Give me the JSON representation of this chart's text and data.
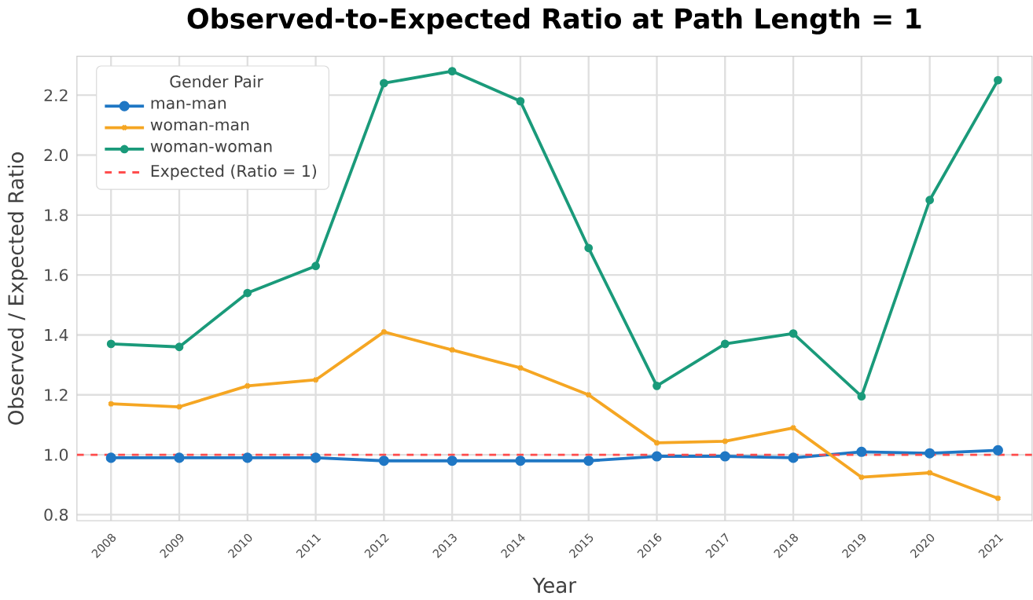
{
  "chart_data": {
    "type": "line",
    "title": "Observed-to-Expected Ratio at Path Length = 1",
    "xlabel": "Year",
    "ylabel": "Observed / Expected Ratio",
    "legend_title": "Gender Pair",
    "categories": [
      "2008",
      "2009",
      "2010",
      "2011",
      "2012",
      "2013",
      "2014",
      "2015",
      "2016",
      "2017",
      "2018",
      "2019",
      "2020",
      "2021"
    ],
    "series": [
      {
        "name": "man-man",
        "color": "#1f77c4",
        "marker": "circle",
        "values": [
          0.99,
          0.99,
          0.99,
          0.99,
          0.98,
          0.98,
          0.98,
          0.98,
          0.995,
          0.995,
          0.99,
          1.01,
          1.005,
          1.015
        ]
      },
      {
        "name": "woman-man",
        "color": "#f5a623",
        "marker": "cross",
        "values": [
          1.17,
          1.16,
          1.23,
          1.25,
          1.41,
          1.35,
          1.29,
          1.2,
          1.04,
          1.045,
          1.09,
          0.925,
          0.94,
          0.855
        ]
      },
      {
        "name": "woman-woman",
        "color": "#1a9a7a",
        "marker": "circle",
        "values": [
          1.37,
          1.36,
          1.54,
          1.63,
          2.24,
          2.28,
          2.18,
          1.69,
          1.23,
          1.37,
          1.405,
          1.195,
          1.85,
          2.25
        ]
      }
    ],
    "ref_lines": [
      {
        "axis": "y",
        "value": 1,
        "label": "Expected (Ratio = 1)",
        "color": "#ff4d4d",
        "line_style": "dashed"
      }
    ],
    "ylim": [
      0.78,
      2.33
    ],
    "yticks": [
      0.8,
      {
        "value": 1,
        "label": "1.0"
      },
      1.2,
      1.4,
      1.6,
      1.8,
      {
        "value": 2,
        "label": "2.0"
      },
      2.2
    ],
    "grid": true,
    "legend": "top left"
  }
}
